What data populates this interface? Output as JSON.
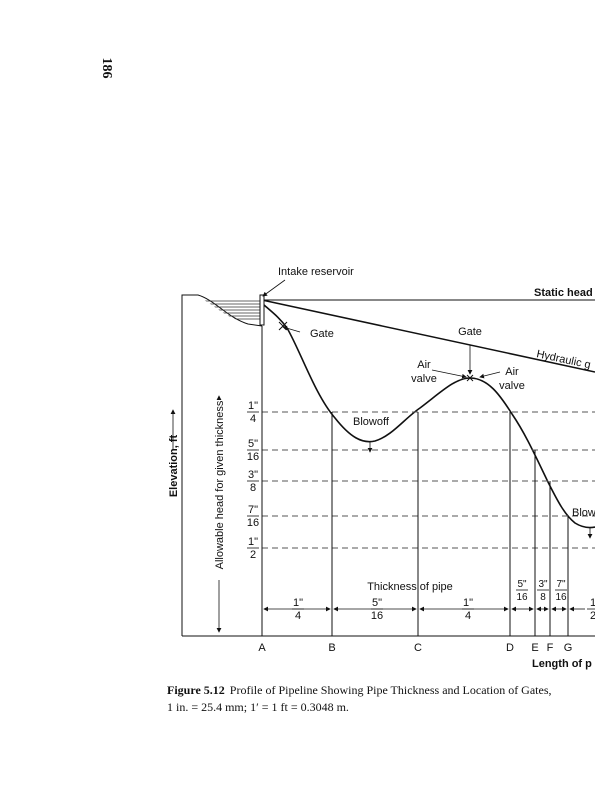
{
  "page_number": "186",
  "labels": {
    "intake_reservoir": "Intake reservoir",
    "static_head": "Static head",
    "gate_1": "Gate",
    "gate_2": "Gate",
    "hydraulic_gradient": "Hydraulic g",
    "air_valve_1": [
      "Air",
      "valve"
    ],
    "air_valve_2": [
      "Air",
      "valve"
    ],
    "blowoff_1": "Blowoff",
    "blowoff_2": "Blow",
    "y_axis": "Elevation, ft",
    "allowable_head": "Allowable head for given thickness",
    "thickness_of_pipe": "Thickness of pipe",
    "x_axis": "Length of p"
  },
  "thickness_levels": [
    {
      "num": "1\"",
      "den": "4"
    },
    {
      "num": "5\"",
      "den": "16"
    },
    {
      "num": "3\"",
      "den": "8"
    },
    {
      "num": "7\"",
      "den": "16"
    },
    {
      "num": "1\"",
      "den": "2"
    }
  ],
  "segment_thicknesses": [
    {
      "num": "1\"",
      "den": "4"
    },
    {
      "num": "5\"",
      "den": "16"
    },
    {
      "num": "1\"",
      "den": "4"
    },
    {
      "num": "5\"",
      "den": "16"
    },
    {
      "num": "3\"",
      "den": "8"
    },
    {
      "num": "7\"",
      "den": "16"
    },
    {
      "num": "1",
      "den": "2"
    }
  ],
  "stations": [
    "A",
    "B",
    "C",
    "D",
    "E",
    "F",
    "G"
  ],
  "caption": {
    "figure": "Figure 5.12",
    "text": "Profile of Pipeline Showing Pipe Thickness and Location of Gates,",
    "line2": "1 in. = 25.4 mm; 1′ = 1 ft = 0.3048 m."
  }
}
